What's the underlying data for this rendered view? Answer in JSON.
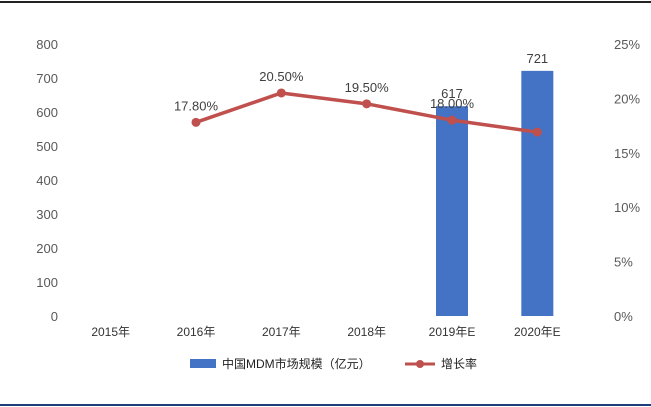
{
  "chart_data": {
    "type": "bar",
    "categories": [
      "2015年",
      "2016年",
      "2017年",
      "2018年",
      "2019年E",
      "2020年E"
    ],
    "series": [
      {
        "name": "中国MDM市场规模（亿元）",
        "type": "bar",
        "axis": "left",
        "values": [
          null,
          null,
          null,
          null,
          617,
          721
        ],
        "data_labels": [
          "",
          "",
          "",
          "",
          "617",
          "721"
        ]
      },
      {
        "name": "增长率",
        "type": "line",
        "axis": "right",
        "values": [
          null,
          17.8,
          20.5,
          19.5,
          18.0,
          16.9
        ],
        "data_labels": [
          "",
          "17.80%",
          "20.50%",
          "19.50%",
          "18.00%",
          ""
        ]
      }
    ],
    "y_left": {
      "min": 0,
      "max": 800,
      "ticks": [
        "0",
        "100",
        "200",
        "300",
        "400",
        "500",
        "600",
        "700",
        "800"
      ]
    },
    "y_right": {
      "min": 0,
      "max": 25,
      "ticks": [
        "0%",
        "5%",
        "10%",
        "15%",
        "20%",
        "25%"
      ]
    },
    "legend_position": "bottom",
    "colors": {
      "bar": "#4472c4",
      "line": "#c0504d"
    }
  }
}
